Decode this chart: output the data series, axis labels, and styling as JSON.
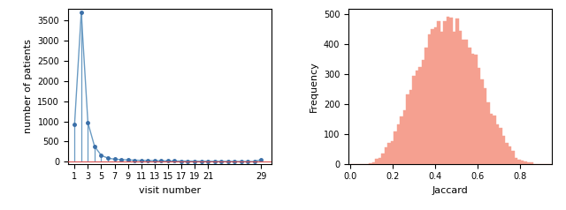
{
  "left_xlabel": "visit number",
  "left_ylabel": "number of patients",
  "left_xticks": [
    1,
    3,
    5,
    7,
    9,
    11,
    13,
    15,
    17,
    19,
    21,
    29
  ],
  "left_ylim": [
    -50,
    3800
  ],
  "left_yticks": [
    0,
    500,
    1000,
    1500,
    2000,
    2500,
    3000,
    3500
  ],
  "left_xlim": [
    0.0,
    30.5
  ],
  "visit_counts": [
    936,
    3700,
    965,
    380,
    160,
    90,
    65,
    55,
    45,
    40,
    35,
    30,
    28,
    25,
    22,
    20,
    18,
    17,
    15,
    14,
    13,
    12,
    11,
    10,
    9,
    8,
    7,
    6,
    55
  ],
  "line_color": "#6a9bc3",
  "marker_color": "#3a6fa8",
  "hline_color": "#d94f4f",
  "right_xlabel": "Jaccard",
  "right_ylabel": "Frequency",
  "right_ylim": [
    0,
    520
  ],
  "right_yticks": [
    0,
    100,
    200,
    300,
    400,
    500
  ],
  "right_xlim": [
    -0.01,
    0.95
  ],
  "hist_color": "#f5a090",
  "hist_edge_color": "#f5a090",
  "num_bins": 65,
  "jaccard_n": 12000
}
